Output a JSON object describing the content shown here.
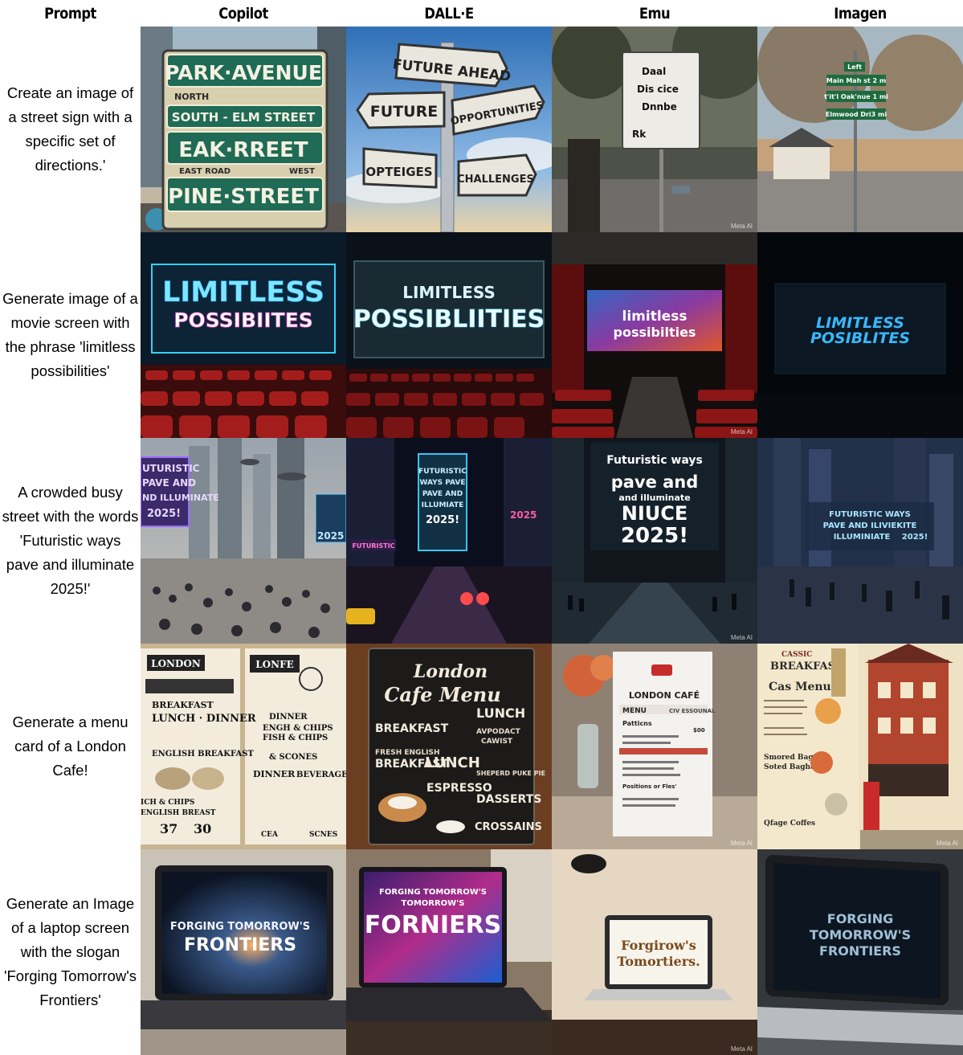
{
  "headers": {
    "prompt": "Prompt",
    "models": [
      "Copilot",
      "DALL·E",
      "Emu",
      "Imagen"
    ]
  },
  "prompts": [
    "Create an image of a street sign with a specific set of directions.'",
    "Generate image of a movie screen with the phrase 'limitless possibilities'",
    "A crowded busy street with the words 'Futuristic ways pave and illuminate 2025!'",
    "Generate a menu card of a London Cafe!",
    "Generate an Image of a laptop screen with the slogan 'Forging Tomorrow's Frontiers'"
  ],
  "watermark": "Meta AI",
  "tiles": {
    "r1": {
      "copilot": {
        "sign1": "PARK·AVENUE",
        "north": "NORTH",
        "sign2": "SOUTH - ELM STREET",
        "sign3": "EAK·RREET",
        "east": "EAST ROAD",
        "west": "WEST",
        "sign4": "PINE·STREET"
      },
      "dalle": {
        "top": "FUTURE AHEAD",
        "left": "FUTURE",
        "right": "OPPORTUNITIES",
        "bottom_left": "OPTEIGES",
        "bottom_right": "CHALLENGES"
      },
      "emu": {
        "line1": "Daal",
        "line2": "Dis cice",
        "line3": "Dnnbe",
        "line4": "Rk"
      },
      "imagen": {
        "top": "Left",
        "line1": "Main Mah st 2 m",
        "line2": "t'it'l Oak'nue 1 mi",
        "line3": "Elmwood Dri3 mi"
      }
    },
    "r2": {
      "copilot": {
        "l1": "LIMITLESS",
        "l2": "POSSIBIITES"
      },
      "dalle": {
        "l1": "LIMITLESS",
        "l2": "POSSIBLIITIES"
      },
      "emu": {
        "l1": "limitless",
        "l2": "possibilties"
      },
      "imagen": {
        "l1": "LIMITLESS",
        "l2": "POSIBLITES"
      }
    },
    "r3": {
      "copilot": {
        "l1": "UTURISTIC",
        "l2": "PAVE AND",
        "l3": "ND ILLUMINATE",
        "l4": "2025!",
        "side": "2025"
      },
      "dalle": {
        "l1": "FUTURISTIC",
        "l2": "WAYS PAVE",
        "l3": "PAVE AND",
        "l4": "ILLUMIATE",
        "l5": "2025!",
        "side1": "FUTURISTIC",
        "side2": "2025"
      },
      "emu": {
        "l1": "Futuristic ways",
        "l2": "pave and",
        "l3": "and illuminate",
        "l4": "NIUCE",
        "l5": "2025!"
      },
      "imagen": {
        "l1": "FUTURISTIC WAYS",
        "l2": "PAVE AND ILIVIEKITE",
        "l3": "ILLUMINIATE",
        "l4": "2025!"
      }
    },
    "r4": {
      "copilot": {
        "a1": "LONDON",
        "a2": "BREAKFAST",
        "a3": "LUNCH · DINNER",
        "a4": "ENGLISH BREAKFAST",
        "a5": "ICH & CHIPS",
        "a6": "ENGLISH BREAST",
        "a7": "37",
        "a8": "30",
        "b1": "LONFE",
        "b2": "DINNER",
        "b3": "ENGH & CHIPS",
        "b4": "FISH & CHIPS",
        "b5": "& SCONES",
        "b6": "DINNER",
        "b7": "BEVERAGES",
        "b8": "CEA",
        "b9": "SCNES"
      },
      "dalle": {
        "t1": "London",
        "t2": "Cafe Menu",
        "c1": "BREAKFAST",
        "c2": "LUNCH",
        "c3": "FRESH ENGLISH",
        "c4": "BREAKFAST",
        "c5": "LUNCH",
        "c6": "AVPODACT",
        "c7": "CAWIST",
        "c8": "ESPRESSO",
        "c9": "SHEPERD PUKE PIE",
        "c10": "DASSERTS",
        "c11": "CROSSAINS"
      },
      "emu": {
        "m1": "LONDON CAFÉ",
        "m2": "MENU",
        "m3": "CIV ESSOUNAL",
        "m4": "Patticns",
        "m5": "$00",
        "m6": "Positions or Fles'"
      },
      "imagen": {
        "h1": "CASSIC",
        "h2": "BREAKFAST",
        "h3": "Cas Menu",
        "h4": "Smored Bagtets",
        "h5": "Soted Baghels",
        "h6": "Qfage Coffes"
      }
    },
    "r5": {
      "copilot": {
        "l1": "FORGING TOMORROW'S",
        "l2": "FRONTIERS"
      },
      "dalle": {
        "l1": "FORGING TOMORROW'S",
        "l2": "TOMORROW'S",
        "l3": "FORNIERS"
      },
      "emu": {
        "l1": "Forgirow's",
        "l2": "Tomortiers."
      },
      "imagen": {
        "l1": "FORGING",
        "l2": "TOMORROW'S",
        "l3": "FRONTIERS"
      }
    }
  }
}
